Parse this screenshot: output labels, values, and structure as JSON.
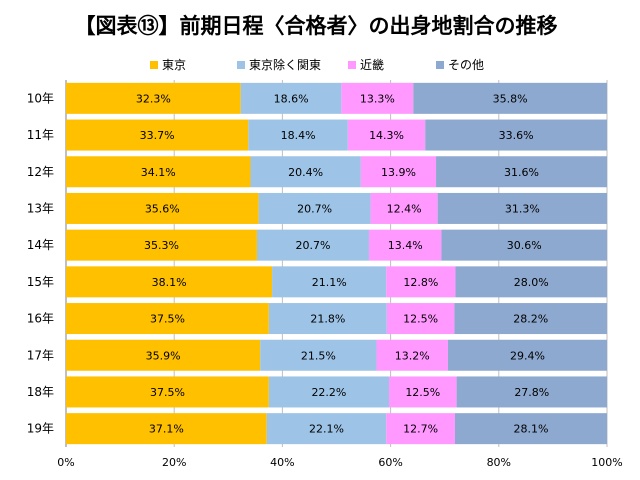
{
  "chart_data": {
    "type": "bar",
    "orientation": "horizontal",
    "stacked": true,
    "percent_stacked": true,
    "title": "【図表⑬】前期日程〈合格者〉の出身地割合の推移",
    "categories": [
      "10年",
      "11年",
      "12年",
      "13年",
      "14年",
      "15年",
      "16年",
      "17年",
      "18年",
      "19年"
    ],
    "series": [
      {
        "name": "東京",
        "color": "#FFC000",
        "values": [
          32.3,
          33.7,
          34.1,
          35.6,
          35.3,
          38.1,
          37.5,
          35.9,
          37.5,
          37.1
        ]
      },
      {
        "name": "東京除く関東",
        "color": "#9DC3E6",
        "values": [
          18.6,
          18.4,
          20.4,
          20.7,
          20.7,
          21.1,
          21.8,
          21.5,
          22.2,
          22.1
        ]
      },
      {
        "name": "近畿",
        "color": "#FF99FF",
        "values": [
          13.3,
          14.3,
          13.9,
          12.4,
          13.4,
          12.8,
          12.5,
          13.2,
          12.5,
          12.7
        ]
      },
      {
        "name": "その他",
        "color": "#8EA9CF",
        "values": [
          35.8,
          33.6,
          31.6,
          31.3,
          30.6,
          28.0,
          28.2,
          29.4,
          27.8,
          28.1
        ]
      }
    ],
    "xlim": [
      0,
      100
    ],
    "xticks": [
      "0%",
      "20%",
      "40%",
      "60%",
      "80%",
      "100%"
    ],
    "grid": true,
    "legend_position": "top",
    "data_labels": true
  }
}
